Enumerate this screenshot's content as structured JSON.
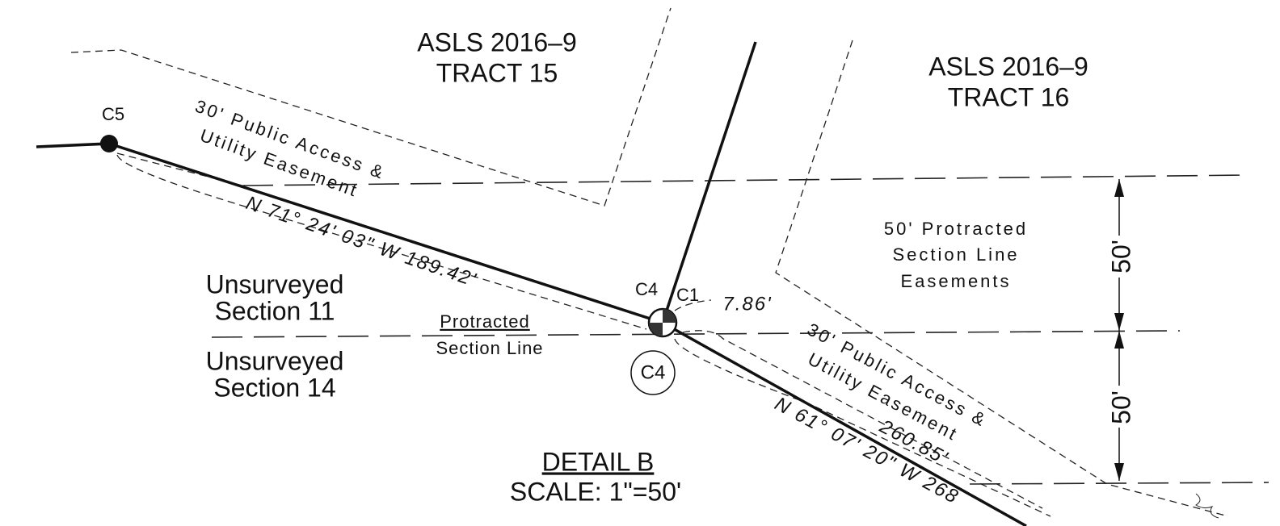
{
  "tracts": [
    {
      "label": "ASLS 2016–9",
      "tract": "TRACT 15"
    },
    {
      "label": "ASLS 2016–9",
      "tract": "TRACT 16"
    }
  ],
  "corners": {
    "c5": "C5",
    "c4": "C4",
    "c1": "C1",
    "c4_circled": "C4",
    "c1_distance": "7.86'"
  },
  "easements": {
    "left": {
      "line1": "30' Public Access &",
      "line2": "Utility Easement"
    },
    "right": {
      "line1": "30' Public Access &",
      "line2": "Utility Easement"
    },
    "section_line": {
      "line1": "50' Protracted",
      "line2": "Section Line",
      "line3": "Easements"
    }
  },
  "bearings": {
    "left": "N 71° 24' 03\" W 189.42'",
    "right": "N 61° 07' 20\" W 268",
    "right_inner": "260.85'"
  },
  "sections": {
    "north": {
      "line1": "Unsurveyed",
      "line2": "Section 11"
    },
    "south": {
      "line1": "Unsurveyed",
      "line2": "Section 14"
    }
  },
  "protracted": {
    "line1": "Protracted",
    "line2": "Section Line"
  },
  "dimensions": {
    "upper": "50'",
    "lower": "50'"
  },
  "detail": {
    "title": "DETAIL B",
    "scale": "SCALE: 1\"=50'"
  }
}
